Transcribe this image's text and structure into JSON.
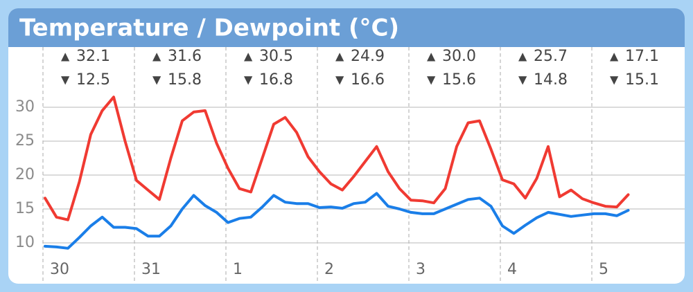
{
  "chart_data": {
    "type": "line",
    "title": "Temperature / Dewpoint (°C)",
    "days": [
      {
        "label": "30",
        "max": "32.1",
        "min": "12.5"
      },
      {
        "label": "31",
        "max": "31.6",
        "min": "15.8"
      },
      {
        "label": "1",
        "max": "30.5",
        "min": "16.8"
      },
      {
        "label": "2",
        "max": "24.9",
        "min": "16.6"
      },
      {
        "label": "3",
        "max": "30.0",
        "min": "15.6"
      },
      {
        "label": "4",
        "max": "25.7",
        "min": "14.8"
      },
      {
        "label": "5",
        "max": "17.1",
        "min": "15.1"
      }
    ],
    "series": [
      {
        "color": "#f03a32",
        "values": [
          16.6,
          13.8,
          13.4,
          19,
          26,
          29.5,
          31.5,
          25,
          19.2,
          17.8,
          16.4,
          22.5,
          28,
          29.3,
          29.5,
          24.7,
          21,
          18,
          17.5,
          22.5,
          27.5,
          28.5,
          26.3,
          22.7,
          20.5,
          18.7,
          17.8,
          19.8,
          22,
          24.2,
          20.5,
          18,
          16.3,
          16.2,
          15.9,
          18,
          24.2,
          27.7,
          28,
          23.8,
          19.3,
          18.7,
          16.6,
          19.5,
          24.2,
          16.8,
          17.8,
          16.5,
          15.9,
          15.4,
          15.3,
          17.1
        ]
      },
      {
        "color": "#1a7ee8",
        "values": [
          9.5,
          9.4,
          9.2,
          10.8,
          12.5,
          13.8,
          12.3,
          12.3,
          12.1,
          11,
          11,
          12.5,
          15,
          17,
          15.5,
          14.5,
          13,
          13.6,
          13.8,
          15.3,
          17,
          16,
          15.8,
          15.8,
          15.2,
          15.3,
          15.1,
          15.8,
          16,
          17.3,
          15.4,
          15,
          14.5,
          14.3,
          14.3,
          15,
          15.7,
          16.4,
          16.6,
          15.4,
          12.5,
          11.4,
          12.6,
          13.7,
          14.5,
          14.2,
          13.9,
          14.1,
          14.3,
          14.3,
          14,
          14.8
        ]
      }
    ],
    "ylim": [
      8,
      32
    ],
    "yticks": [
      10,
      15,
      20,
      25,
      30
    ],
    "grid": true
  }
}
